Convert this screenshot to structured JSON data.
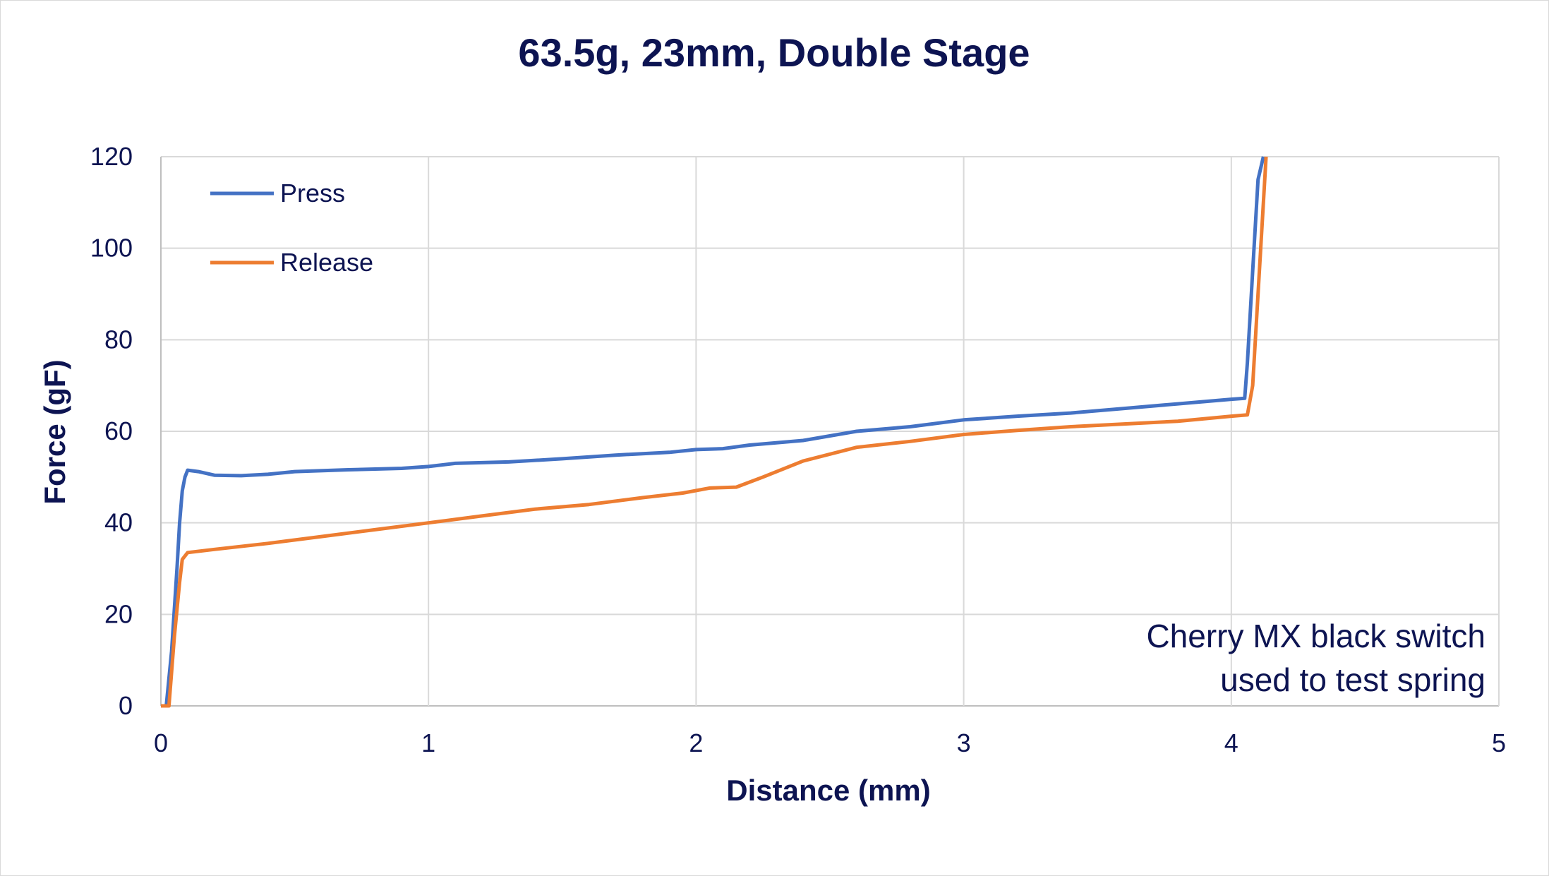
{
  "chart_data": {
    "type": "line",
    "title": "63.5g, 23mm, Double Stage",
    "xlabel": "Distance (mm)",
    "ylabel": "Force (gF)",
    "xlim": [
      0,
      5
    ],
    "ylim": [
      0,
      120
    ],
    "xticks": [
      0,
      1,
      2,
      3,
      4,
      5
    ],
    "yticks": [
      0,
      20,
      40,
      60,
      80,
      100,
      120
    ],
    "x_tick_labels": [
      "0",
      "1",
      "2",
      "3",
      "4",
      "5"
    ],
    "y_tick_labels": [
      "0",
      "20",
      "40",
      "60",
      "80",
      "100",
      "120"
    ],
    "grid": true,
    "legend_position": "top-left",
    "annotation": [
      "Cherry MX black switch",
      "used to test spring"
    ],
    "series": [
      {
        "name": "Press",
        "color": "#4472c4",
        "points": [
          [
            0.0,
            0
          ],
          [
            0.02,
            0
          ],
          [
            0.04,
            12
          ],
          [
            0.06,
            30
          ],
          [
            0.07,
            40
          ],
          [
            0.08,
            47
          ],
          [
            0.09,
            50
          ],
          [
            0.1,
            51.5
          ],
          [
            0.14,
            51.2
          ],
          [
            0.2,
            50.4
          ],
          [
            0.3,
            50.3
          ],
          [
            0.4,
            50.6
          ],
          [
            0.5,
            51.2
          ],
          [
            0.7,
            51.6
          ],
          [
            0.9,
            51.9
          ],
          [
            1.0,
            52.3
          ],
          [
            1.1,
            53.0
          ],
          [
            1.3,
            53.3
          ],
          [
            1.5,
            54.0
          ],
          [
            1.7,
            54.8
          ],
          [
            1.9,
            55.4
          ],
          [
            2.0,
            56.0
          ],
          [
            2.1,
            56.2
          ],
          [
            2.2,
            57.0
          ],
          [
            2.4,
            58.0
          ],
          [
            2.5,
            59.0
          ],
          [
            2.6,
            60.0
          ],
          [
            2.8,
            61.0
          ],
          [
            3.0,
            62.5
          ],
          [
            3.2,
            63.3
          ],
          [
            3.4,
            64.0
          ],
          [
            3.6,
            65.0
          ],
          [
            3.8,
            66.0
          ],
          [
            4.0,
            67.0
          ],
          [
            4.05,
            67.2
          ],
          [
            4.06,
            75
          ],
          [
            4.08,
            95
          ],
          [
            4.1,
            115
          ],
          [
            4.12,
            120
          ]
        ]
      },
      {
        "name": "Release",
        "color": "#ed7d31",
        "points": [
          [
            0.0,
            0
          ],
          [
            0.03,
            0
          ],
          [
            0.05,
            15
          ],
          [
            0.07,
            27
          ],
          [
            0.08,
            32
          ],
          [
            0.1,
            33.5
          ],
          [
            0.2,
            34.2
          ],
          [
            0.4,
            35.5
          ],
          [
            0.6,
            37.0
          ],
          [
            0.8,
            38.5
          ],
          [
            1.0,
            40.0
          ],
          [
            1.2,
            41.5
          ],
          [
            1.4,
            43.0
          ],
          [
            1.6,
            44.0
          ],
          [
            1.8,
            45.5
          ],
          [
            1.95,
            46.5
          ],
          [
            2.05,
            47.6
          ],
          [
            2.15,
            47.8
          ],
          [
            2.25,
            50.0
          ],
          [
            2.4,
            53.5
          ],
          [
            2.6,
            56.5
          ],
          [
            2.8,
            57.8
          ],
          [
            3.0,
            59.3
          ],
          [
            3.2,
            60.2
          ],
          [
            3.4,
            61.0
          ],
          [
            3.6,
            61.6
          ],
          [
            3.8,
            62.2
          ],
          [
            4.0,
            63.3
          ],
          [
            4.06,
            63.6
          ],
          [
            4.08,
            70
          ],
          [
            4.1,
            90
          ],
          [
            4.12,
            110
          ],
          [
            4.13,
            120
          ]
        ]
      }
    ]
  }
}
